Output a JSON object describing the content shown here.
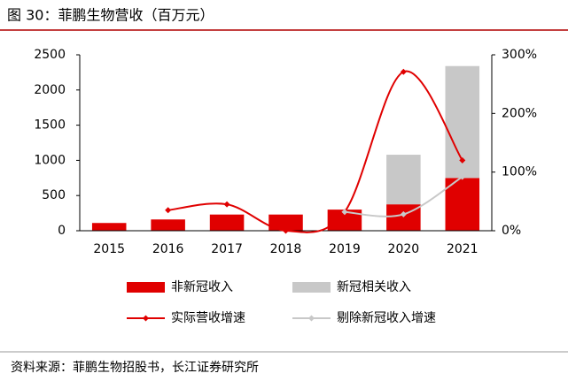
{
  "chart_data": {
    "type": "bar",
    "title": "图 30：菲鹏生物营收（百万元）",
    "source": "资料来源：菲鹏生物招股书，长江证券研究所",
    "categories": [
      "2015",
      "2016",
      "2017",
      "2018",
      "2019",
      "2020",
      "2021"
    ],
    "series": [
      {
        "name": "非新冠收入",
        "type": "bar",
        "color": "#e00000",
        "values": [
          110,
          160,
          230,
          230,
          300,
          375,
          750
        ]
      },
      {
        "name": "新冠相关收入",
        "type": "bar",
        "color": "#c8c8c8",
        "values": [
          null,
          null,
          null,
          null,
          null,
          705,
          1590
        ]
      },
      {
        "name": "实际营收增速",
        "type": "line",
        "axis": "y2",
        "color": "#e00000",
        "values": [
          null,
          35,
          45,
          0,
          32,
          271,
          120
        ]
      },
      {
        "name": "剔除新冠收入增速",
        "type": "line",
        "axis": "y2",
        "color": "#c8c8c8",
        "values": [
          null,
          null,
          null,
          null,
          32,
          28,
          92
        ]
      }
    ],
    "ylim": [
      0,
      2500
    ],
    "yticks": [
      0,
      500,
      1000,
      1500,
      2000,
      2500
    ],
    "y2lim": [
      0,
      300
    ],
    "y2ticks": [
      {
        "value": 0,
        "label": "0%"
      },
      {
        "value": 100,
        "label": "100%"
      },
      {
        "value": 200,
        "label": "200%"
      },
      {
        "value": 300,
        "label": "300%"
      }
    ],
    "legend": "bottom",
    "stacked": true,
    "smooth": true
  }
}
